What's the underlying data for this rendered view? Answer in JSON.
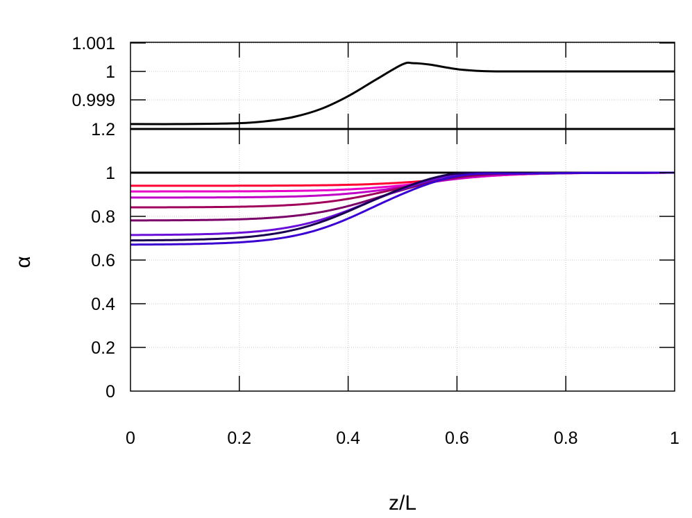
{
  "chart_data": [
    {
      "panel": "top-inset",
      "type": "line",
      "title": "",
      "xlabel": "",
      "ylabel": "",
      "xlim": [
        0,
        1
      ],
      "ylim": [
        0.998,
        1.001
      ],
      "yticks": [
        {
          "value": 1.001,
          "label": "1.001"
        },
        {
          "value": 1.0,
          "label": "1"
        },
        {
          "value": 0.999,
          "label": "0.999"
        }
      ],
      "grid": true,
      "series": [
        {
          "name": "reference",
          "color": "#000000",
          "x": [
            0,
            0.1,
            0.2,
            0.25,
            0.3,
            0.35,
            0.4,
            0.45,
            0.5,
            0.52,
            0.55,
            0.6,
            0.65,
            0.7,
            0.8,
            0.9,
            1.0
          ],
          "values": [
            0.99815,
            0.99815,
            0.99818,
            0.99825,
            0.9984,
            0.99868,
            0.99913,
            0.9997,
            1.00025,
            1.00029,
            1.00024,
            1.00008,
            1.00001,
            1.0,
            1.0,
            1.0,
            1.0
          ]
        }
      ]
    },
    {
      "panel": "main",
      "type": "line",
      "title": "",
      "xlabel": "z/L",
      "ylabel": "α",
      "xlim": [
        0,
        1
      ],
      "ylim": [
        0,
        1.2
      ],
      "xticks": [
        {
          "value": 0,
          "label": "0"
        },
        {
          "value": 0.2,
          "label": "0.2"
        },
        {
          "value": 0.4,
          "label": "0.4"
        },
        {
          "value": 0.6,
          "label": "0.6"
        },
        {
          "value": 0.8,
          "label": "0.8"
        },
        {
          "value": 1,
          "label": "1"
        }
      ],
      "yticks": [
        {
          "value": 1.2,
          "label": "1.2"
        },
        {
          "value": 1.0,
          "label": "1"
        },
        {
          "value": 0.8,
          "label": "0.8"
        },
        {
          "value": 0.6,
          "label": "0.6"
        },
        {
          "value": 0.4,
          "label": "0.4"
        },
        {
          "value": 0.2,
          "label": "0.2"
        },
        {
          "value": 0,
          "label": "0"
        }
      ],
      "grid": true,
      "legend": "none",
      "series": [
        {
          "name": "s0",
          "color": "#000000",
          "start": 1.0,
          "end": 1.0,
          "overshoot": 0.0,
          "center": 0.45
        },
        {
          "name": "s1",
          "color": "#ff0033",
          "start": 0.94,
          "end": 1.0,
          "overshoot": 0.0,
          "center": 0.58
        },
        {
          "name": "s2",
          "color": "#e800c8",
          "start": 0.914,
          "end": 1.0,
          "overshoot": 0.0,
          "center": 0.55
        },
        {
          "name": "s3",
          "color": "#c000c8",
          "start": 0.886,
          "end": 1.0,
          "overshoot": 0.002,
          "center": 0.52
        },
        {
          "name": "s4",
          "color": "#a0005c",
          "start": 0.841,
          "end": 1.0,
          "overshoot": 0.004,
          "center": 0.48
        },
        {
          "name": "s5",
          "color": "#7a0068",
          "start": 0.781,
          "end": 1.0,
          "overshoot": 0.008,
          "center": 0.46
        },
        {
          "name": "s6",
          "color": "#6a10d8",
          "start": 0.714,
          "end": 1.0,
          "overshoot": 0.014,
          "center": 0.43
        },
        {
          "name": "s7",
          "color": "#1a0050",
          "start": 0.689,
          "end": 1.0,
          "overshoot": 0.019,
          "center": 0.42
        },
        {
          "name": "s8",
          "color": "#3a00d0",
          "start": 0.67,
          "end": 1.0,
          "overshoot": 0.016,
          "center": 0.44
        }
      ]
    }
  ],
  "axes": {
    "x_title": "z/L",
    "y_title": "α"
  },
  "colors": {
    "axis": "#000000",
    "grid": "#c8c8c8",
    "background": "#ffffff"
  }
}
